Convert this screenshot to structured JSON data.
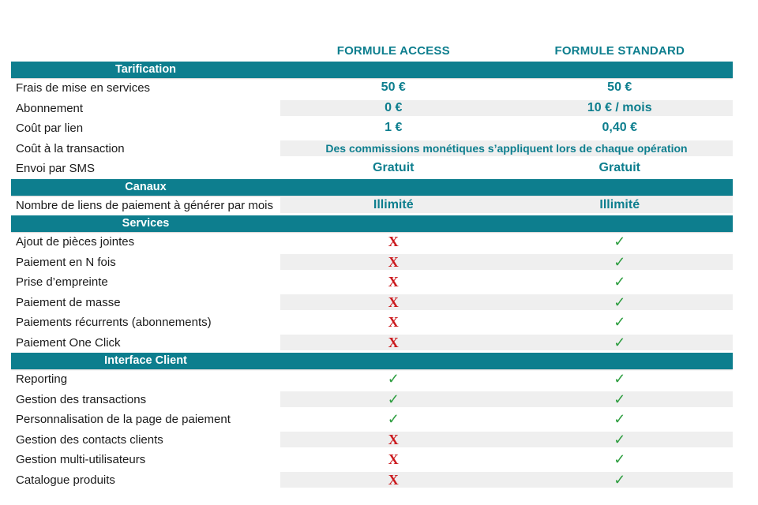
{
  "colors": {
    "teal": "#0d7e8e",
    "stripe": "#efefef",
    "check": "#2f9e41",
    "cross": "#cb1a1e"
  },
  "glyphs": {
    "check": "✓",
    "cross": "X"
  },
  "header": {
    "col1": "FORMULE ACCESS",
    "col2": "FORMULE STANDARD"
  },
  "sections": [
    {
      "title": "Tarification",
      "rows": [
        {
          "label": "Frais de mise en services",
          "access": "50 €",
          "standard": "50 €"
        },
        {
          "label": "Abonnement",
          "access": "0 €",
          "standard": "10 € / mois"
        },
        {
          "label": "Coût par lien",
          "access": "1 €",
          "standard": "0,40 €"
        },
        {
          "label": "Coût à la transaction",
          "merged": "Des commissions monétiques s’appliquent lors de chaque opération"
        },
        {
          "label": "Envoi par SMS",
          "access": "Gratuit",
          "standard": "Gratuit"
        }
      ]
    },
    {
      "title": "Canaux",
      "rows": [
        {
          "label": "Nombre de liens de paiement à générer par mois",
          "access": "Illimité",
          "standard": "Illimité"
        }
      ]
    },
    {
      "title": "Services",
      "rows": [
        {
          "label": "Ajout de pièces jointes",
          "access": "cross",
          "standard": "check"
        },
        {
          "label": "Paiement en N fois",
          "access": "cross",
          "standard": "check"
        },
        {
          "label": "Prise d’empreinte",
          "access": "cross",
          "standard": "check"
        },
        {
          "label": "Paiement de masse",
          "access": "cross",
          "standard": "check"
        },
        {
          "label": "Paiements récurrents (abonnements)",
          "access": "cross",
          "standard": "check"
        },
        {
          "label": "Paiement One Click",
          "access": "cross",
          "standard": "check"
        }
      ]
    },
    {
      "title": "Interface Client",
      "rows": [
        {
          "label": "Reporting",
          "access": "check",
          "standard": "check"
        },
        {
          "label": "Gestion des transactions",
          "access": "check",
          "standard": "check"
        },
        {
          "label": "Personnalisation de la page de paiement",
          "access": "check",
          "standard": "check"
        },
        {
          "label": "Gestion des contacts clients",
          "access": "cross",
          "standard": "check"
        },
        {
          "label": "Gestion multi-utilisateurs",
          "access": "cross",
          "standard": "check"
        },
        {
          "label": "Catalogue produits",
          "access": "cross",
          "standard": "check"
        }
      ]
    }
  ]
}
